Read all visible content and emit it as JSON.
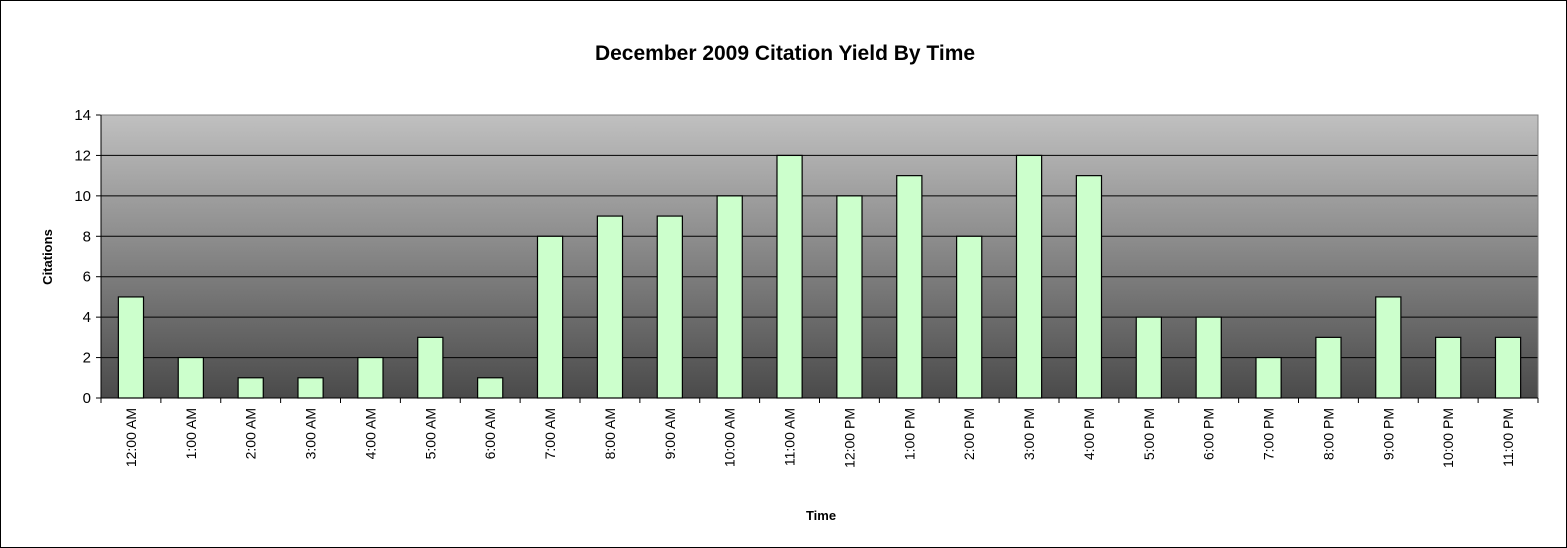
{
  "chart_data": {
    "type": "bar",
    "title": "December 2009 Citation Yield By Time",
    "xlabel": "Time",
    "ylabel": "Citations",
    "ylim": [
      0,
      14
    ],
    "yticks": [
      0,
      2,
      4,
      6,
      8,
      10,
      12,
      14
    ],
    "grid": true,
    "legend": "none",
    "bar_color": "#ccffcc",
    "plot_background": "gradient gray (light top, dark bottom)",
    "categories": [
      "12:00 AM",
      "1:00 AM",
      "2:00 AM",
      "3:00 AM",
      "4:00 AM",
      "5:00 AM",
      "6:00 AM",
      "7:00 AM",
      "8:00 AM",
      "9:00 AM",
      "10:00 AM",
      "11:00 AM",
      "12:00 PM",
      "1:00 PM",
      "2:00 PM",
      "3:00 PM",
      "4:00 PM",
      "5:00 PM",
      "6:00 PM",
      "7:00 PM",
      "8:00 PM",
      "9:00 PM",
      "10:00 PM",
      "11:00 PM"
    ],
    "values": [
      5,
      2,
      1,
      1,
      2,
      3,
      1,
      8,
      9,
      9,
      10,
      12,
      10,
      11,
      8,
      12,
      11,
      4,
      4,
      2,
      3,
      5,
      3,
      3
    ]
  }
}
